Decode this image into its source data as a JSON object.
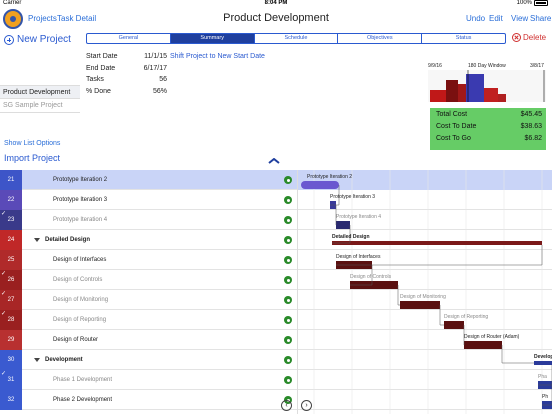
{
  "status_bar": {
    "carrier": "Carrier",
    "time": "8:04 PM",
    "battery": "100%"
  },
  "nav": {
    "projects": "Projects",
    "task_detail": "Task Detail",
    "title": "Product Development",
    "undo": "Undo",
    "edit": "Edit",
    "view": "View",
    "share": "Share"
  },
  "left_panel": {
    "new_project": "New Project",
    "projects": [
      {
        "name": "Product Development"
      },
      {
        "name": "SG Sample Project"
      }
    ],
    "show_list_options": "Show List Options",
    "import_project": "Import Project"
  },
  "tabs": [
    {
      "label": "General"
    },
    {
      "label": "Summary"
    },
    {
      "label": "Schedule"
    },
    {
      "label": "Objectives"
    },
    {
      "label": "Status"
    }
  ],
  "delete": "Delete",
  "summary": {
    "start_date_label": "Start Date",
    "start_date": "11/1/15",
    "end_date_label": "End Date",
    "end_date": "6/17/17",
    "tasks_label": "Tasks",
    "tasks": "56",
    "done_label": "% Done",
    "done": "56%",
    "shift_link": "Shift Project to New Start Date"
  },
  "mini_chart": {
    "left_date": "9/9/16",
    "window_label": "180 Day Window",
    "right_date": "3/8/17"
  },
  "cost": {
    "total_label": "Total Cost",
    "total": "$45.45",
    "to_date_label": "Cost To Date",
    "to_date": "$38.63",
    "to_go_label": "Cost To Go",
    "to_go": "$6.82"
  },
  "rows": [
    {
      "num": "21",
      "name": "Prototype Iteration 2",
      "done": false,
      "bold": false,
      "muted": false,
      "indent": 2,
      "color": "#3d55c8",
      "highlight": true,
      "fit": "Fit"
    },
    {
      "num": "22",
      "name": "Prototype Iteration 3",
      "done": false,
      "bold": false,
      "muted": false,
      "indent": 2,
      "color": "#5a4ab8"
    },
    {
      "num": "23",
      "name": "Prototype Iteration 4",
      "done": true,
      "bold": false,
      "muted": true,
      "indent": 2,
      "color": "#3a3a8a"
    },
    {
      "num": "24",
      "name": "Detailed Design",
      "done": false,
      "bold": true,
      "muted": false,
      "indent": 1,
      "color": "#c02828",
      "group": true
    },
    {
      "num": "25",
      "name": "Design of Interfaces",
      "done": false,
      "bold": false,
      "muted": false,
      "indent": 2,
      "color": "#b02a2a"
    },
    {
      "num": "26",
      "name": "Design of Controls",
      "done": true,
      "bold": false,
      "muted": true,
      "indent": 2,
      "color": "#9a2020"
    },
    {
      "num": "27",
      "name": "Design of Monitoring",
      "done": true,
      "bold": false,
      "muted": true,
      "indent": 2,
      "color": "#a82626"
    },
    {
      "num": "28",
      "name": "Design of Reporting",
      "done": true,
      "bold": false,
      "muted": true,
      "indent": 2,
      "color": "#9a2020"
    },
    {
      "num": "29",
      "name": "Design of Router",
      "done": false,
      "bold": false,
      "muted": false,
      "indent": 2,
      "color": "#b83030"
    },
    {
      "num": "30",
      "name": "Development",
      "done": false,
      "bold": true,
      "muted": false,
      "indent": 1,
      "color": "#3a5ad0",
      "group": true
    },
    {
      "num": "31",
      "name": "Phase 1 Development",
      "done": true,
      "bold": false,
      "muted": true,
      "indent": 2,
      "color": "#3a5ad0"
    },
    {
      "num": "32",
      "name": "Phase 2 Development",
      "done": false,
      "bold": false,
      "muted": false,
      "indent": 2,
      "color": "#3a5ad0"
    }
  ],
  "gantt": {
    "bars": [
      {
        "label": "Prototype Iteration 2",
        "color": "#6a58d0",
        "label_muted": false
      },
      {
        "label": "Prototype Iteration 3",
        "color": "#3a3a9a",
        "label_muted": false
      },
      {
        "label": "Prototype Iteration 4",
        "color": "#2a2a70",
        "label_muted": true
      },
      {
        "label": "Detailed Design",
        "color": "#7a1818",
        "label_muted": false
      },
      {
        "label": "Design of Interfaces",
        "color": "#5a1010",
        "label_muted": false
      },
      {
        "label": "Design of Controls",
        "color": "#5a1010",
        "label_muted": true
      },
      {
        "label": "Design of Monitoring",
        "color": "#5a1010",
        "label_muted": true
      },
      {
        "label": "Design of Reporting",
        "color": "#5a1010",
        "label_muted": true
      },
      {
        "label": "Design of Router (Adam)",
        "color": "#5a1010",
        "label_muted": false
      },
      {
        "label": "Develop",
        "color": "#2a3a9a",
        "label_muted": false
      },
      {
        "label": "Pha",
        "color": "#2a3a9a",
        "label_muted": true
      },
      {
        "label": "Ph",
        "color": "#2a3a9a",
        "label_muted": false
      }
    ]
  },
  "controls": {
    "prev": "‹",
    "next": "›"
  }
}
